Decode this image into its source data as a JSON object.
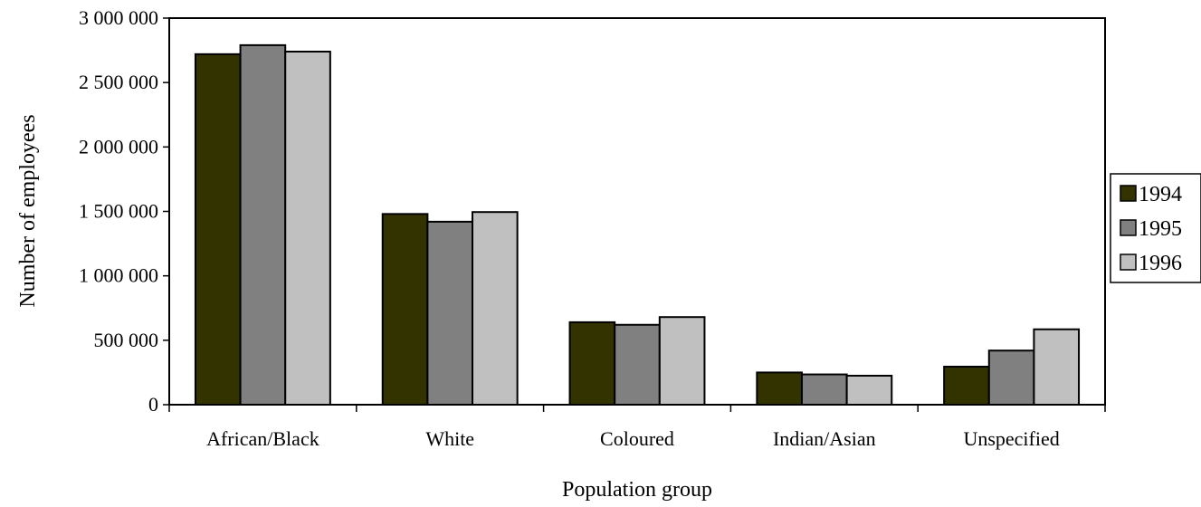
{
  "chart_data": {
    "type": "bar",
    "title": "",
    "xlabel": "Population group",
    "ylabel": "Number of employees",
    "categories": [
      "African/Black",
      "White",
      "Coloured",
      "Indian/Asian",
      "Unspecified"
    ],
    "series": [
      {
        "name": "1994",
        "color": "#333300",
        "values": [
          2720000,
          1480000,
          640000,
          250000,
          295000
        ]
      },
      {
        "name": "1995",
        "color": "#808080",
        "values": [
          2790000,
          1420000,
          620000,
          235000,
          420000
        ]
      },
      {
        "name": "1996",
        "color": "#c0c0c0",
        "values": [
          2740000,
          1495000,
          680000,
          225000,
          585000
        ]
      }
    ],
    "ylim": [
      0,
      3000000
    ],
    "yticks": [
      0,
      500000,
      1000000,
      1500000,
      2000000,
      2500000,
      3000000
    ],
    "ytick_labels": [
      "0",
      "500 000",
      "1 000 000",
      "1 500 000",
      "2 000 000",
      "2 500 000",
      "3 000 000"
    ],
    "grid": false,
    "legend_position": "right"
  }
}
